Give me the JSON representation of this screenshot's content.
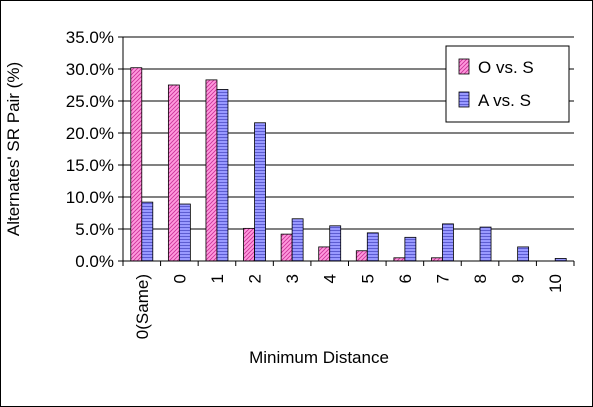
{
  "chart_data": {
    "type": "bar",
    "categories": [
      "0(Same)",
      "0",
      "1",
      "2",
      "3",
      "4",
      "5",
      "6",
      "7",
      "8",
      "9",
      "10"
    ],
    "series": [
      {
        "name": "O vs. S",
        "values": [
          30.2,
          27.5,
          28.3,
          5.1,
          4.2,
          2.2,
          1.6,
          0.5,
          0.5,
          0.0,
          0.0,
          0.0
        ],
        "color": "#ff66cc",
        "pattern": "diagonal-hatch"
      },
      {
        "name": "A vs. S",
        "values": [
          9.2,
          8.9,
          26.8,
          21.6,
          6.6,
          5.5,
          4.4,
          3.7,
          5.8,
          5.3,
          2.2,
          0.4
        ],
        "color": "#8080ff",
        "pattern": "horizontal-hatch"
      }
    ],
    "xlabel": "Minimum Distance",
    "ylabel": "Alternates' SR Pair (%)",
    "ylim": [
      0,
      35
    ],
    "yticks": [
      "0.0%",
      "5.0%",
      "10.0%",
      "15.0%",
      "20.0%",
      "25.0%",
      "30.0%",
      "35.0%"
    ],
    "grid": "horizontal",
    "legend_position": "top-right"
  }
}
